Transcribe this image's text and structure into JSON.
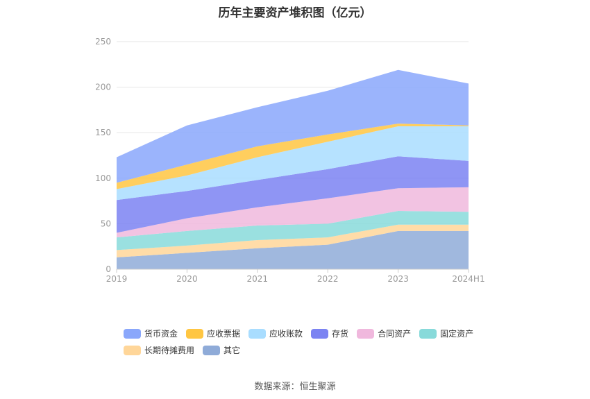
{
  "title": "历年主要资产堆积图（亿元）",
  "source": "数据来源：恒生聚源",
  "chart_data": {
    "type": "area",
    "stacked": true,
    "categories": [
      "2019",
      "2020",
      "2021",
      "2022",
      "2023",
      "2024H1"
    ],
    "ylim": [
      0,
      250
    ],
    "yticks": [
      0,
      50,
      100,
      150,
      200,
      250
    ],
    "grid": true,
    "legend_position": "bottom",
    "series": [
      {
        "name": "其它",
        "color": "#8fabd8",
        "values": [
          13,
          18,
          23,
          27,
          42,
          42
        ]
      },
      {
        "name": "长期待摊费用",
        "color": "#ffd699",
        "values": [
          8,
          8,
          9,
          8,
          7,
          7
        ]
      },
      {
        "name": "固定资产",
        "color": "#88dada",
        "values": [
          14,
          16,
          16,
          15,
          15,
          14
        ]
      },
      {
        "name": "合同资产",
        "color": "#f0b8dd",
        "values": [
          5,
          14,
          20,
          28,
          25,
          27
        ]
      },
      {
        "name": "存货",
        "color": "#7b83f2",
        "values": [
          36,
          30,
          30,
          32,
          35,
          29
        ]
      },
      {
        "name": "应收账款",
        "color": "#a9ddff",
        "values": [
          12,
          17,
          25,
          30,
          33,
          38
        ]
      },
      {
        "name": "应收票据",
        "color": "#ffc642",
        "values": [
          7,
          12,
          12,
          8,
          3,
          1
        ]
      },
      {
        "name": "货币资金",
        "color": "#8aa7fb",
        "values": [
          28,
          43,
          43,
          48,
          59,
          46
        ]
      }
    ]
  },
  "legend_order": [
    {
      "name": "货币资金",
      "color": "#8aa7fb"
    },
    {
      "name": "应收票据",
      "color": "#ffc642"
    },
    {
      "name": "应收账款",
      "color": "#a9ddff"
    },
    {
      "name": "存货",
      "color": "#7b83f2"
    },
    {
      "name": "合同资产",
      "color": "#f0b8dd"
    },
    {
      "name": "固定资产",
      "color": "#88dada"
    },
    {
      "name": "长期待摊费用",
      "color": "#ffd699"
    },
    {
      "name": "其它",
      "color": "#8fabd8"
    }
  ]
}
